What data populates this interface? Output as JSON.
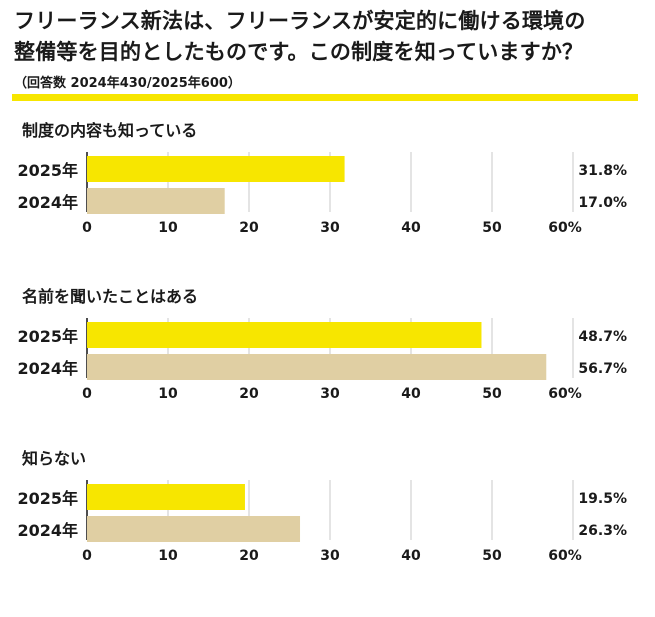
{
  "title_line1": "フリーランス新法は、フリーランスが安定的に働ける環境の",
  "title_line2": "整備等を目的としたものです。この制度を知っていますか？",
  "subtitle": "（回答数 2024年430/2025年600）",
  "colors": {
    "y2025": "#f7e600",
    "y2024": "#e0cfa3",
    "accent": "#f7e600"
  },
  "chart_data": [
    {
      "type": "bar",
      "title": "制度の内容も知っている",
      "categories": [
        "2025年",
        "2024年"
      ],
      "values": [
        31.8,
        17.0
      ],
      "value_labels": [
        "31.8%",
        "17.0%"
      ],
      "xlim": [
        0,
        60
      ],
      "ticks": [
        "0",
        "10",
        "20",
        "30",
        "40",
        "50",
        "60%"
      ],
      "grid": true
    },
    {
      "type": "bar",
      "title": "名前を聞いたことはある",
      "categories": [
        "2025年",
        "2024年"
      ],
      "values": [
        48.7,
        56.7
      ],
      "value_labels": [
        "48.7%",
        "56.7%"
      ],
      "xlim": [
        0,
        60
      ],
      "ticks": [
        "0",
        "10",
        "20",
        "30",
        "40",
        "50",
        "60%"
      ],
      "grid": true
    },
    {
      "type": "bar",
      "title": "知らない",
      "categories": [
        "2025年",
        "2024年"
      ],
      "values": [
        19.5,
        26.3
      ],
      "value_labels": [
        "19.5%",
        "26.3%"
      ],
      "xlim": [
        0,
        60
      ],
      "ticks": [
        "0",
        "10",
        "20",
        "30",
        "40",
        "50",
        "60%"
      ],
      "grid": true
    }
  ]
}
